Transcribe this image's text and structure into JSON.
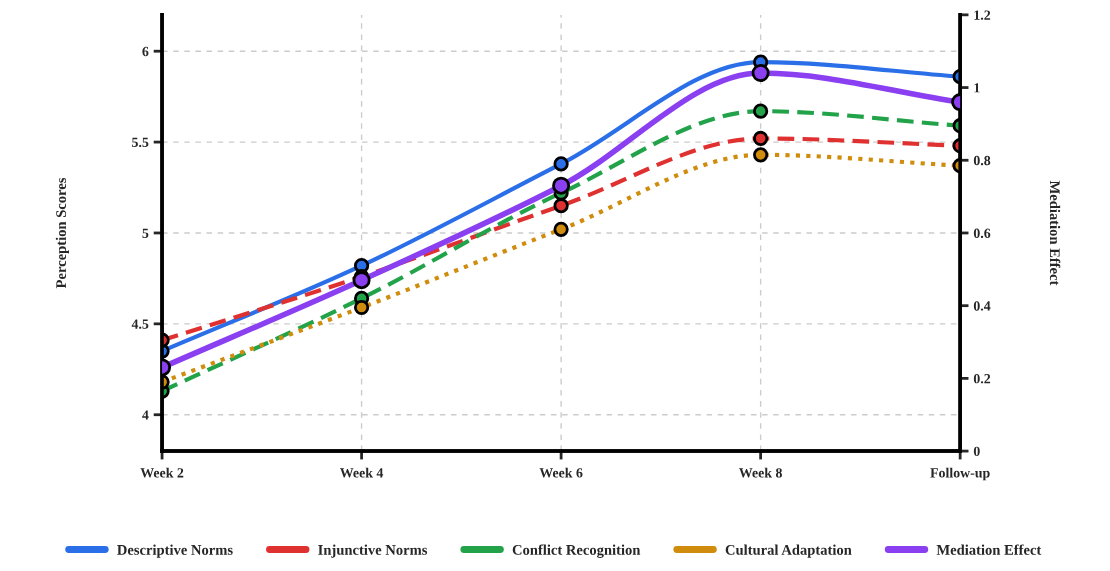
{
  "chart_data": {
    "type": "line",
    "ylabel": "Perception Scores",
    "y2label": "Mediation Effect",
    "categories": [
      "Week 2",
      "Week 4",
      "Week 6",
      "Week 8",
      "Follow-up"
    ],
    "ylim": [
      3.8,
      6.2
    ],
    "yticks": [
      4,
      4.5,
      5,
      5.5,
      6
    ],
    "y2lim": [
      0,
      1.2
    ],
    "y2ticks": [
      0,
      0.2,
      0.4,
      0.6,
      0.8,
      1,
      1.2
    ],
    "grid": true,
    "legend": "bottom",
    "marker": "circle",
    "series": [
      {
        "name": "Descriptive Norms",
        "color": "#2b6fe8",
        "line_style": "solid",
        "values": [
          4.35,
          4.82,
          5.38,
          5.94,
          5.86
        ]
      },
      {
        "name": "Injunctive Norms",
        "color": "#e03131",
        "line_style": "dashed",
        "values": [
          4.41,
          4.76,
          5.15,
          5.52,
          5.48
        ]
      },
      {
        "name": "Conflict Recognition",
        "color": "#22a34a",
        "line_style": "dashed",
        "values": [
          4.13,
          4.64,
          5.22,
          5.67,
          5.59
        ]
      },
      {
        "name": "Cultural Adaptation",
        "color": "#d08c0c",
        "line_style": "dotted",
        "values": [
          4.18,
          4.59,
          5.02,
          5.43,
          5.37
        ]
      },
      {
        "name": "Mediation Effect",
        "color": "#8a3ff0",
        "line_style": "solid",
        "axis": "y2",
        "values": [
          0.23,
          0.47,
          0.73,
          1.04,
          0.96
        ]
      }
    ]
  }
}
